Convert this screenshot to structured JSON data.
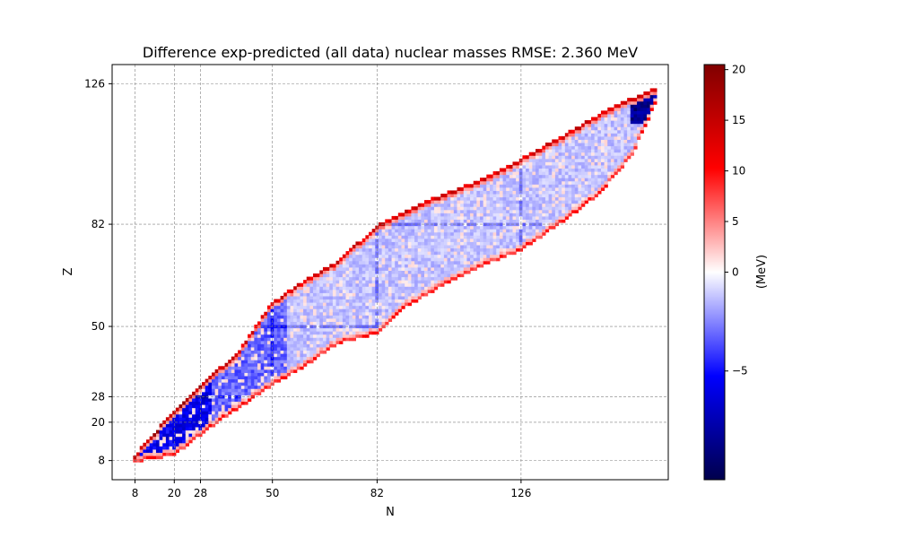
{
  "chart_data": {
    "type": "heatmap",
    "title": "Difference exp-predicted (all data) nuclear masses  RMSE: 2.360 MeV",
    "xlabel": "N",
    "ylabel": "Z",
    "xlim": [
      1,
      171
    ],
    "ylim": [
      2,
      132
    ],
    "x_ticks": [
      8,
      20,
      28,
      50,
      82,
      126
    ],
    "x_tick_labels": [
      "8",
      "20",
      "28",
      "50",
      "82",
      "126"
    ],
    "y_ticks": [
      8,
      20,
      28,
      50,
      82,
      126
    ],
    "y_tick_labels": [
      "8",
      "20",
      "28",
      "50",
      "82",
      "126"
    ],
    "grid": true,
    "grid_style": "dashed, at magic numbers",
    "colorbar": {
      "label": "(MeV)",
      "range": [
        -10.5,
        20.5
      ],
      "ticks": [
        -5,
        0,
        5,
        10,
        15,
        20
      ],
      "tick_labels": [
        "−5",
        "0",
        "5",
        "10",
        "15",
        "20"
      ],
      "colormap": "seismic, two-slope centered at 0"
    },
    "colors": {
      "min": "#00004c",
      "mid_low": "#0000ff",
      "center": "#ffffff",
      "mid_high": "#ff0000",
      "max": "#800000",
      "grid": "#808080"
    },
    "region_left_edge": [
      [
        8,
        9
      ],
      [
        12,
        14
      ],
      [
        20,
        23
      ],
      [
        28,
        31
      ],
      [
        40,
        42
      ],
      [
        50,
        57
      ],
      [
        60,
        64
      ],
      [
        70,
        70
      ],
      [
        82,
        81
      ],
      [
        90,
        85
      ],
      [
        100,
        90
      ],
      [
        115,
        96
      ],
      [
        126,
        102
      ],
      [
        140,
        110
      ],
      [
        150,
        116
      ],
      [
        160,
        121
      ],
      [
        167,
        124
      ]
    ],
    "region_right_edge": [
      [
        8,
        8
      ],
      [
        20,
        10
      ],
      [
        30,
        18
      ],
      [
        40,
        25
      ],
      [
        50,
        32
      ],
      [
        60,
        38
      ],
      [
        70,
        45
      ],
      [
        82,
        48
      ],
      [
        90,
        56
      ],
      [
        100,
        62
      ],
      [
        115,
        70
      ],
      [
        126,
        74
      ],
      [
        130,
        77
      ],
      [
        140,
        84
      ],
      [
        150,
        92
      ],
      [
        160,
        104
      ],
      [
        167,
        120
      ]
    ],
    "features": {
      "blue_core": "strongly negative residuals (~ -5 to -7 MeV) for light nuclei N 8-30",
      "red_edges": "large positive residuals (5 to 20 MeV) along proton-rich and neutron-rich boundaries",
      "dark_blue_corner": "most negative values (~ -10 MeV) at the heaviest nuclei near N=166, Z=118"
    }
  }
}
